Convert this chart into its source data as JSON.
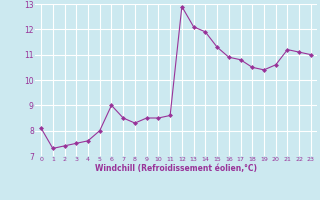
{
  "x": [
    0,
    1,
    2,
    3,
    4,
    5,
    6,
    7,
    8,
    9,
    10,
    11,
    12,
    13,
    14,
    15,
    16,
    17,
    18,
    19,
    20,
    21,
    22,
    23
  ],
  "y": [
    8.1,
    7.3,
    7.4,
    7.5,
    7.6,
    8.0,
    9.0,
    8.5,
    8.3,
    8.5,
    8.5,
    8.6,
    12.9,
    12.1,
    11.9,
    11.3,
    10.9,
    10.8,
    10.5,
    10.4,
    10.6,
    11.2,
    11.1,
    11.0
  ],
  "line_color": "#993399",
  "marker": "D",
  "marker_size": 2.0,
  "bg_color": "#cce9f0",
  "grid_color": "#ffffff",
  "xlabel": "Windchill (Refroidissement éolien,°C)",
  "xlabel_color": "#993399",
  "tick_color": "#993399",
  "ylim": [
    7,
    13
  ],
  "xlim": [
    -0.5,
    23.5
  ],
  "yticks": [
    7,
    8,
    9,
    10,
    11,
    12,
    13
  ],
  "xticks": [
    0,
    1,
    2,
    3,
    4,
    5,
    6,
    7,
    8,
    9,
    10,
    11,
    12,
    13,
    14,
    15,
    16,
    17,
    18,
    19,
    20,
    21,
    22,
    23
  ],
  "xlabel_fontsize": 5.5,
  "xtick_fontsize": 4.5,
  "ytick_fontsize": 5.5
}
